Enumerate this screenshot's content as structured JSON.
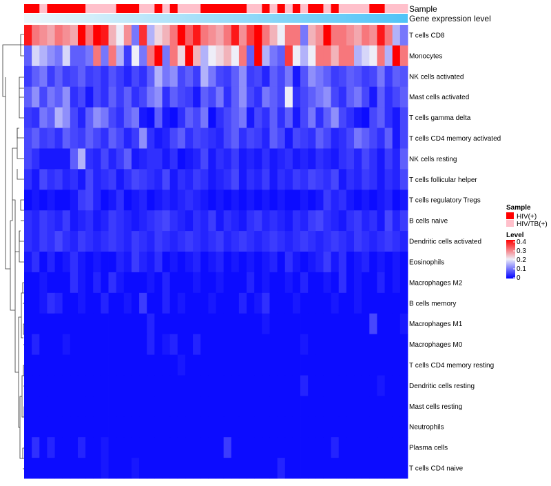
{
  "chart_data": {
    "type": "heatmap",
    "title": "",
    "annotations": [
      {
        "name": "Sample",
        "label": "Sample"
      },
      {
        "name": "Gene expression level",
        "label": "Gene expression level"
      }
    ],
    "sample_groups": [
      "HIV(+)",
      "HIV(+)",
      "HIV/TB(+)",
      "HIV(+)",
      "HIV(+)",
      "HIV(+)",
      "HIV(+)",
      "HIV(+)",
      "HIV/TB(+)",
      "HIV/TB(+)",
      "HIV/TB(+)",
      "HIV/TB(+)",
      "HIV(+)",
      "HIV(+)",
      "HIV(+)",
      "HIV/TB(+)",
      "HIV/TB(+)",
      "HIV(+)",
      "HIV/TB(+)",
      "HIV(+)",
      "HIV/TB(+)",
      "HIV/TB(+)",
      "HIV/TB(+)",
      "HIV(+)",
      "HIV(+)",
      "HIV(+)",
      "HIV(+)",
      "HIV(+)",
      "HIV(+)",
      "HIV/TB(+)",
      "HIV/TB(+)",
      "HIV(+)",
      "HIV/TB(+)",
      "HIV(+)",
      "HIV/TB(+)",
      "HIV(+)",
      "HIV/TB(+)",
      "HIV(+)",
      "HIV(+)",
      "HIV/TB(+)",
      "HIV(+)",
      "HIV/TB(+)",
      "HIV/TB(+)",
      "HIV/TB(+)",
      "HIV/TB(+)",
      "HIV(+)",
      "HIV(+)",
      "HIV/TB(+)",
      "HIV/TB(+)",
      "HIV/TB(+)"
    ],
    "expression_level": "increasing left to right",
    "rows": [
      "T cells CD8",
      "Monocytes",
      "NK cells activated",
      "Mast cells activated",
      "T cells gamma delta",
      "T cells CD4 memory activated",
      "NK cells resting",
      "T cells follicular helper",
      "T cells regulatory  Tregs",
      "B cells naive",
      "Dendritic cells activated",
      "Eosinophils",
      "Macrophages M2",
      "B cells memory",
      "Macrophages M1",
      "Macrophages M0",
      "T cells CD4 memory resting",
      "Dendritic cells resting",
      "Mast cells resting",
      "Neutrophils",
      "Plasma cells",
      "T cells CD4 naive"
    ],
    "values": [
      [
        0.38,
        0.3,
        0.28,
        0.26,
        0.3,
        0.28,
        0.26,
        0.4,
        0.3,
        0.4,
        0.38,
        0.25,
        0.2,
        0.28,
        0.1,
        0.36,
        0.15,
        0.22,
        0.25,
        0.3,
        0.4,
        0.32,
        0.38,
        0.3,
        0.28,
        0.26,
        0.3,
        0.38,
        0.28,
        0.35,
        0.4,
        0.3,
        0.25,
        0.2,
        0.3,
        0.3,
        0.1,
        0.25,
        0.28,
        0.4,
        0.3,
        0.3,
        0.28,
        0.26,
        0.3,
        0.28,
        0.38,
        0.3,
        0.15,
        0.1
      ],
      [
        0.08,
        0.18,
        0.15,
        0.12,
        0.1,
        0.18,
        0.08,
        0.08,
        0.1,
        0.3,
        0.1,
        0.3,
        0.15,
        0.05,
        0.2,
        0.1,
        0.3,
        0.4,
        0.1,
        0.3,
        0.22,
        0.4,
        0.25,
        0.15,
        0.2,
        0.22,
        0.25,
        0.2,
        0.3,
        0.08,
        0.4,
        0.15,
        0.1,
        0.08,
        0.35,
        0.2,
        0.15,
        0.2,
        0.3,
        0.3,
        0.25,
        0.3,
        0.3,
        0.15,
        0.18,
        0.2,
        0.3,
        0.15,
        0.4,
        0.3
      ],
      [
        0.05,
        0.08,
        0.1,
        0.05,
        0.08,
        0.05,
        0.06,
        0.08,
        0.05,
        0.06,
        0.04,
        0.07,
        0.05,
        0.03,
        0.06,
        0.04,
        0.08,
        0.15,
        0.1,
        0.12,
        0.06,
        0.08,
        0.05,
        0.15,
        0.1,
        0.06,
        0.05,
        0.08,
        0.12,
        0.05,
        0.06,
        0.03,
        0.08,
        0.06,
        0.1,
        0.02,
        0.07,
        0.12,
        0.1,
        0.08,
        0.05,
        0.06,
        0.08,
        0.07,
        0.05,
        0.06,
        0.1,
        0.05,
        0.08,
        0.07
      ],
      [
        0.08,
        0.12,
        0.06,
        0.1,
        0.08,
        0.12,
        0.04,
        0.06,
        0.02,
        0.06,
        0.04,
        0.08,
        0.05,
        0.08,
        0.04,
        0.06,
        0.1,
        0.12,
        0.04,
        0.08,
        0.06,
        0.05,
        0.02,
        0.08,
        0.06,
        0.1,
        0.04,
        0.08,
        0.12,
        0.06,
        0.04,
        0.1,
        0.08,
        0.06,
        0.2,
        0.04,
        0.06,
        0.08,
        0.1,
        0.12,
        0.06,
        0.04,
        0.08,
        0.1,
        0.06,
        0.02,
        0.08,
        0.04,
        0.06,
        0.08
      ],
      [
        0.05,
        0.04,
        0.1,
        0.08,
        0.15,
        0.12,
        0.06,
        0.03,
        0.08,
        0.12,
        0.1,
        0.06,
        0.04,
        0.08,
        0.1,
        0.02,
        0.01,
        0.08,
        0.02,
        0.01,
        0.04,
        0.08,
        0.06,
        0.1,
        0.01,
        0.04,
        0.06,
        0.08,
        0.1,
        0.02,
        0.06,
        0.04,
        0.08,
        0.04,
        0.08,
        0.02,
        0.06,
        0.1,
        0.04,
        0.08,
        0.12,
        0.06,
        0.04,
        0.02,
        0.01,
        0.06,
        0.08,
        0.04,
        0.02,
        0.06
      ],
      [
        0.06,
        0.08,
        0.05,
        0.06,
        0.04,
        0.08,
        0.06,
        0.05,
        0.08,
        0.06,
        0.04,
        0.08,
        0.06,
        0.03,
        0.05,
        0.12,
        0.04,
        0.02,
        0.03,
        0.06,
        0.08,
        0.04,
        0.06,
        0.05,
        0.04,
        0.03,
        0.06,
        0.08,
        0.04,
        0.06,
        0.05,
        0.03,
        0.08,
        0.06,
        0.02,
        0.06,
        0.05,
        0.04,
        0.08,
        0.06,
        0.03,
        0.04,
        0.06,
        0.1,
        0.08,
        0.06,
        0.04,
        0.08,
        0.02,
        0.06
      ],
      [
        0.06,
        0.04,
        0.02,
        0.02,
        0.02,
        0.02,
        0.08,
        0.15,
        0.04,
        0.03,
        0.06,
        0.03,
        0.05,
        0.08,
        0.02,
        0.03,
        0.04,
        0.04,
        0.02,
        0.04,
        0.01,
        0.02,
        0.03,
        0.06,
        0.02,
        0.04,
        0.03,
        0.05,
        0.02,
        0.03,
        0.02,
        0.04,
        0.02,
        0.03,
        0.04,
        0.02,
        0.03,
        0.02,
        0.04,
        0.03,
        0.02,
        0.04,
        0.05,
        0.03,
        0.06,
        0.04,
        0.02,
        0.05,
        0.03,
        0.08
      ],
      [
        0.04,
        0.02,
        0.06,
        0.04,
        0.05,
        0.03,
        0.04,
        0.02,
        0.06,
        0.03,
        0.04,
        0.05,
        0.02,
        0.04,
        0.06,
        0.05,
        0.04,
        0.03,
        0.06,
        0.02,
        0.04,
        0.03,
        0.05,
        0.04,
        0.02,
        0.03,
        0.04,
        0.06,
        0.02,
        0.04,
        0.03,
        0.05,
        0.02,
        0.04,
        0.03,
        0.05,
        0.04,
        0.06,
        0.05,
        0.04,
        0.06,
        0.02,
        0.04,
        0.03,
        0.05,
        0.04,
        0.02,
        0.04,
        0.03,
        0.06
      ],
      [
        0.01,
        0.02,
        0.01,
        0.02,
        0.01,
        0.01,
        0.02,
        0.05,
        0.06,
        0.03,
        0.01,
        0.02,
        0.04,
        0.01,
        0.02,
        0.03,
        0.01,
        0.02,
        0.03,
        0.02,
        0.03,
        0.04,
        0.03,
        0.02,
        0.01,
        0.02,
        0.01,
        0.02,
        0.01,
        0.02,
        0.01,
        0.02,
        0.01,
        0.02,
        0.01,
        0.01,
        0.02,
        0.01,
        0.02,
        0.05,
        0.03,
        0.04,
        0.02,
        0.01,
        0.02,
        0.01,
        0.02,
        0.03,
        0.01,
        0.02
      ],
      [
        0.04,
        0.03,
        0.05,
        0.04,
        0.03,
        0.05,
        0.02,
        0.03,
        0.04,
        0.02,
        0.03,
        0.05,
        0.04,
        0.03,
        0.02,
        0.03,
        0.04,
        0.05,
        0.06,
        0.04,
        0.03,
        0.02,
        0.04,
        0.03,
        0.05,
        0.02,
        0.04,
        0.03,
        0.02,
        0.04,
        0.05,
        0.03,
        0.04,
        0.03,
        0.02,
        0.04,
        0.03,
        0.05,
        0.06,
        0.04,
        0.03,
        0.02,
        0.04,
        0.05,
        0.03,
        0.04,
        0.02,
        0.06,
        0.03,
        0.05
      ],
      [
        0.04,
        0.03,
        0.05,
        0.04,
        0.06,
        0.04,
        0.03,
        0.05,
        0.04,
        0.03,
        0.04,
        0.05,
        0.04,
        0.03,
        0.05,
        0.04,
        0.03,
        0.05,
        0.04,
        0.03,
        0.04,
        0.05,
        0.04,
        0.03,
        0.04,
        0.05,
        0.03,
        0.04,
        0.05,
        0.04,
        0.03,
        0.04,
        0.05,
        0.04,
        0.03,
        0.04,
        0.05,
        0.04,
        0.03,
        0.04,
        0.05,
        0.04,
        0.03,
        0.05,
        0.04,
        0.03,
        0.04,
        0.05,
        0.04,
        0.03
      ],
      [
        0.02,
        0.04,
        0.01,
        0.03,
        0.01,
        0.02,
        0.04,
        0.02,
        0.01,
        0.02,
        0.01,
        0.01,
        0.03,
        0.02,
        0.05,
        0.03,
        0.02,
        0.04,
        0.01,
        0.02,
        0.01,
        0.02,
        0.03,
        0.01,
        0.02,
        0.03,
        0.01,
        0.02,
        0.01,
        0.02,
        0.01,
        0.02,
        0.03,
        0.01,
        0.04,
        0.02,
        0.01,
        0.02,
        0.03,
        0.05,
        0.02,
        0.04,
        0.01,
        0.02,
        0.03,
        0.01,
        0.02,
        0.01,
        0.02,
        0.01
      ],
      [
        0.01,
        0.01,
        0.02,
        0.01,
        0.01,
        0.01,
        0.04,
        0.02,
        0.01,
        0.03,
        0.01,
        0.04,
        0.02,
        0.01,
        0.01,
        0.01,
        0.02,
        0.01,
        0.03,
        0.01,
        0.01,
        0.01,
        0.02,
        0.01,
        0.01,
        0.02,
        0.01,
        0.01,
        0.01,
        0.03,
        0.01,
        0.02,
        0.01,
        0.01,
        0.02,
        0.01,
        0.03,
        0.01,
        0.01,
        0.02,
        0.01,
        0.04,
        0.01,
        0.02,
        0.01,
        0.01,
        0.03,
        0.01,
        0.02,
        0.01
      ],
      [
        0.01,
        0.01,
        0.02,
        0.04,
        0.03,
        0.01,
        0.01,
        0.02,
        0.01,
        0.01,
        0.03,
        0.01,
        0.01,
        0.02,
        0.01,
        0.05,
        0.01,
        0.01,
        0.03,
        0.01,
        0.02,
        0.01,
        0.01,
        0.01,
        0.02,
        0.01,
        0.01,
        0.01,
        0.03,
        0.01,
        0.02,
        0.04,
        0.01,
        0.01,
        0.01,
        0.02,
        0.01,
        0.01,
        0.01,
        0.01,
        0.02,
        0.01,
        0.01,
        0.02,
        0.01,
        0.01,
        0.01,
        0.01,
        0.01,
        0.01
      ],
      [
        0.01,
        0.01,
        0.01,
        0.01,
        0.01,
        0.01,
        0.01,
        0.01,
        0.01,
        0.01,
        0.01,
        0.01,
        0.01,
        0.01,
        0.01,
        0.01,
        0.03,
        0.01,
        0.01,
        0.01,
        0.01,
        0.01,
        0.01,
        0.01,
        0.01,
        0.01,
        0.01,
        0.01,
        0.01,
        0.01,
        0.01,
        0.02,
        0.01,
        0.01,
        0.01,
        0.01,
        0.01,
        0.01,
        0.01,
        0.01,
        0.01,
        0.01,
        0.01,
        0.01,
        0.01,
        0.06,
        0.01,
        0.01,
        0.01,
        0.02
      ],
      [
        0.01,
        0.03,
        0.01,
        0.01,
        0.01,
        0.02,
        0.01,
        0.01,
        0.01,
        0.01,
        0.01,
        0.01,
        0.01,
        0.01,
        0.01,
        0.01,
        0.03,
        0.01,
        0.02,
        0.03,
        0.01,
        0.01,
        0.03,
        0.01,
        0.01,
        0.01,
        0.01,
        0.01,
        0.01,
        0.01,
        0.01,
        0.01,
        0.01,
        0.01,
        0.01,
        0.01,
        0.02,
        0.01,
        0.01,
        0.01,
        0.01,
        0.01,
        0.01,
        0.01,
        0.01,
        0.01,
        0.01,
        0.01,
        0.01,
        0.01
      ],
      [
        0.01,
        0.01,
        0.01,
        0.01,
        0.01,
        0.01,
        0.01,
        0.01,
        0.01,
        0.01,
        0.01,
        0.01,
        0.01,
        0.01,
        0.01,
        0.01,
        0.01,
        0.01,
        0.01,
        0.01,
        0.02,
        0.01,
        0.01,
        0.01,
        0.01,
        0.01,
        0.01,
        0.01,
        0.01,
        0.01,
        0.01,
        0.01,
        0.01,
        0.01,
        0.01,
        0.01,
        0.01,
        0.01,
        0.01,
        0.01,
        0.01,
        0.01,
        0.01,
        0.01,
        0.01,
        0.01,
        0.01,
        0.01,
        0.01,
        0.01
      ],
      [
        0.01,
        0.01,
        0.01,
        0.01,
        0.01,
        0.01,
        0.01,
        0.01,
        0.01,
        0.01,
        0.01,
        0.01,
        0.01,
        0.01,
        0.01,
        0.01,
        0.01,
        0.01,
        0.01,
        0.01,
        0.01,
        0.01,
        0.01,
        0.01,
        0.01,
        0.01,
        0.01,
        0.01,
        0.01,
        0.01,
        0.01,
        0.01,
        0.01,
        0.01,
        0.01,
        0.01,
        0.03,
        0.01,
        0.01,
        0.01,
        0.01,
        0.01,
        0.01,
        0.01,
        0.01,
        0.01,
        0.02,
        0.01,
        0.01,
        0.01
      ],
      [
        0.01,
        0.01,
        0.01,
        0.01,
        0.01,
        0.01,
        0.01,
        0.01,
        0.01,
        0.01,
        0.01,
        0.01,
        0.01,
        0.01,
        0.01,
        0.01,
        0.01,
        0.01,
        0.01,
        0.01,
        0.01,
        0.01,
        0.01,
        0.01,
        0.01,
        0.01,
        0.01,
        0.01,
        0.01,
        0.01,
        0.01,
        0.01,
        0.01,
        0.01,
        0.01,
        0.01,
        0.01,
        0.01,
        0.01,
        0.01,
        0.01,
        0.01,
        0.01,
        0.01,
        0.01,
        0.01,
        0.01,
        0.01,
        0.01,
        0.01
      ],
      [
        0.01,
        0.01,
        0.01,
        0.01,
        0.01,
        0.01,
        0.01,
        0.01,
        0.01,
        0.01,
        0.01,
        0.01,
        0.01,
        0.01,
        0.01,
        0.01,
        0.01,
        0.01,
        0.01,
        0.01,
        0.01,
        0.01,
        0.01,
        0.01,
        0.01,
        0.01,
        0.01,
        0.01,
        0.01,
        0.01,
        0.01,
        0.01,
        0.01,
        0.01,
        0.01,
        0.01,
        0.01,
        0.01,
        0.01,
        0.01,
        0.01,
        0.01,
        0.01,
        0.01,
        0.01,
        0.01,
        0.01,
        0.01,
        0.01,
        0.01
      ],
      [
        0.01,
        0.04,
        0.01,
        0.03,
        0.01,
        0.01,
        0.01,
        0.03,
        0.01,
        0.01,
        0.02,
        0.01,
        0.01,
        0.01,
        0.01,
        0.01,
        0.01,
        0.01,
        0.01,
        0.01,
        0.01,
        0.01,
        0.01,
        0.01,
        0.01,
        0.01,
        0.05,
        0.01,
        0.01,
        0.01,
        0.01,
        0.01,
        0.01,
        0.01,
        0.01,
        0.01,
        0.01,
        0.01,
        0.01,
        0.01,
        0.03,
        0.01,
        0.01,
        0.01,
        0.01,
        0.01,
        0.01,
        0.01,
        0.01,
        0.01
      ],
      [
        0.01,
        0.01,
        0.01,
        0.01,
        0.01,
        0.01,
        0.01,
        0.01,
        0.01,
        0.01,
        0.02,
        0.01,
        0.01,
        0.01,
        0.02,
        0.01,
        0.01,
        0.01,
        0.01,
        0.01,
        0.01,
        0.01,
        0.01,
        0.01,
        0.01,
        0.01,
        0.01,
        0.01,
        0.01,
        0.01,
        0.01,
        0.01,
        0.01,
        0.03,
        0.01,
        0.01,
        0.01,
        0.01,
        0.01,
        0.01,
        0.01,
        0.01,
        0.01,
        0.01,
        0.01,
        0.01,
        0.01,
        0.01,
        0.01,
        0.01
      ]
    ],
    "color_scale": {
      "domain": [
        0,
        0.2,
        0.4
      ],
      "colors": [
        "#0000ff",
        "#eeeef8",
        "#ff0000"
      ],
      "ticks": [
        "0",
        "0.1",
        "0.2",
        "0.3",
        "0.4"
      ]
    },
    "legends": {
      "sample": {
        "title": "Sample",
        "items": [
          {
            "label": "HIV(+)",
            "color": "#ff0000"
          },
          {
            "label": "HIV/TB(+)",
            "color": "#ffc0cb"
          }
        ]
      },
      "level": {
        "title": "Level"
      }
    },
    "expression_bar_colors": [
      "#eef7fb",
      "#4fc3f7"
    ]
  }
}
